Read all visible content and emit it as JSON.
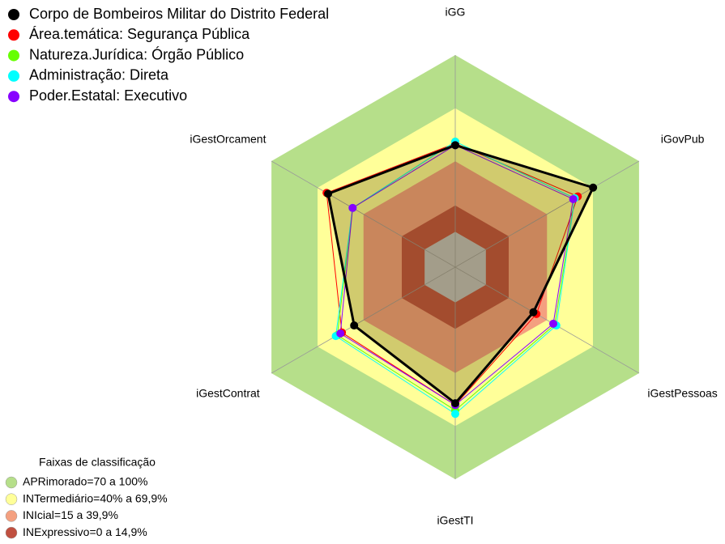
{
  "chart_data": {
    "type": "radar",
    "categories": [
      "iGG",
      "iGovPub",
      "iGestPessoas",
      "iGestTI",
      "iGestContrat",
      "iGestOrcament"
    ],
    "ylim": [
      -20,
      100
    ],
    "series": [
      {
        "name": "Corpo de Bombeiros Militar do Distrito Federal",
        "color": "#000000",
        "values": [
          49,
          70,
          31,
          57,
          46,
          63
        ]
      },
      {
        "name": "Área.temática: Segurança Pública",
        "color": "#ff0000",
        "values": [
          50,
          60,
          33,
          58,
          54,
          64
        ]
      },
      {
        "name": "Natureza.Jurídica: Órgão Público",
        "color": "#66ff00",
        "values": [
          51,
          58,
          45,
          61,
          57,
          47
        ]
      },
      {
        "name": "Administração: Direta",
        "color": "#00ffff",
        "values": [
          51,
          58,
          46,
          63,
          58,
          47
        ]
      },
      {
        "name": "Poder.Estatal: Executivo",
        "color": "#8800ff",
        "values": [
          49,
          57,
          44,
          58,
          55,
          47
        ]
      }
    ],
    "bands_title": "Faixas de classificação",
    "bands": [
      {
        "label": "APRimorado=70 a 100%",
        "range": [
          70,
          100
        ],
        "color": "#b6df8a"
      },
      {
        "label": "INTermediário=40% a 69,9%",
        "range": [
          40,
          69.9
        ],
        "color": "#ffff99"
      },
      {
        "label": "INIcial=15 a 39,9%",
        "range": [
          15,
          39.9
        ],
        "color": "#f4a080"
      },
      {
        "label": "INExpressivo=0 a 14,9%",
        "range": [
          0,
          14.9
        ],
        "color": "#c05040"
      }
    ]
  }
}
